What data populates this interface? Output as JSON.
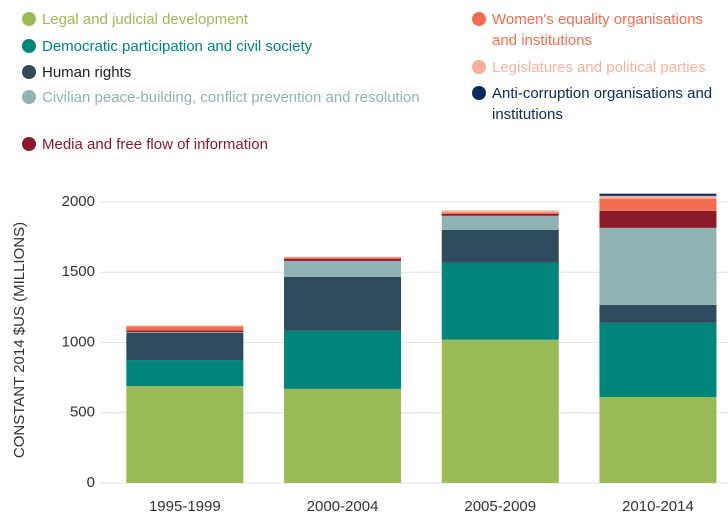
{
  "chart_data": {
    "type": "stacked_bar",
    "y_label": "CONSTANT 2014 $US (MILLIONS)",
    "categories": [
      "1995-1999",
      "2000-2004",
      "2005-2009",
      "2010-2014"
    ],
    "series": [
      {
        "name": "Legal and judicial development",
        "color": "#9bbb59",
        "values": [
          690,
          670,
          1020,
          612
        ]
      },
      {
        "name": "Democratic participation and civil society",
        "color": "#00857a",
        "values": [
          185,
          413,
          547,
          528
        ]
      },
      {
        "name": "Human rights",
        "color": "#2e4a5c",
        "values": [
          195,
          384,
          235,
          128
        ]
      },
      {
        "name": "Civilian peace-building, conflict prevention and resolution",
        "color": "#8fb3b3",
        "values": [
          5,
          114,
          100,
          548
        ]
      },
      {
        "name": "Media and free flow of information",
        "color": "#8b1a2a",
        "values": [
          10,
          14,
          13,
          121
        ]
      },
      {
        "name": "Women's equality organisations and institutions",
        "color": "#f26d50",
        "values": [
          30,
          10,
          10,
          86
        ]
      },
      {
        "name": "Legislatures and political parties",
        "color": "#f7b19b",
        "values": [
          5,
          5,
          15,
          21
        ]
      },
      {
        "name": "Anti-corruption organisations and institutions",
        "color": "#0a2a5e",
        "values": [
          0,
          0,
          0,
          15
        ]
      }
    ],
    "ylim": [
      0,
      2000
    ],
    "yticks": [
      0,
      500,
      1000,
      1500,
      2000
    ],
    "grid": true
  }
}
